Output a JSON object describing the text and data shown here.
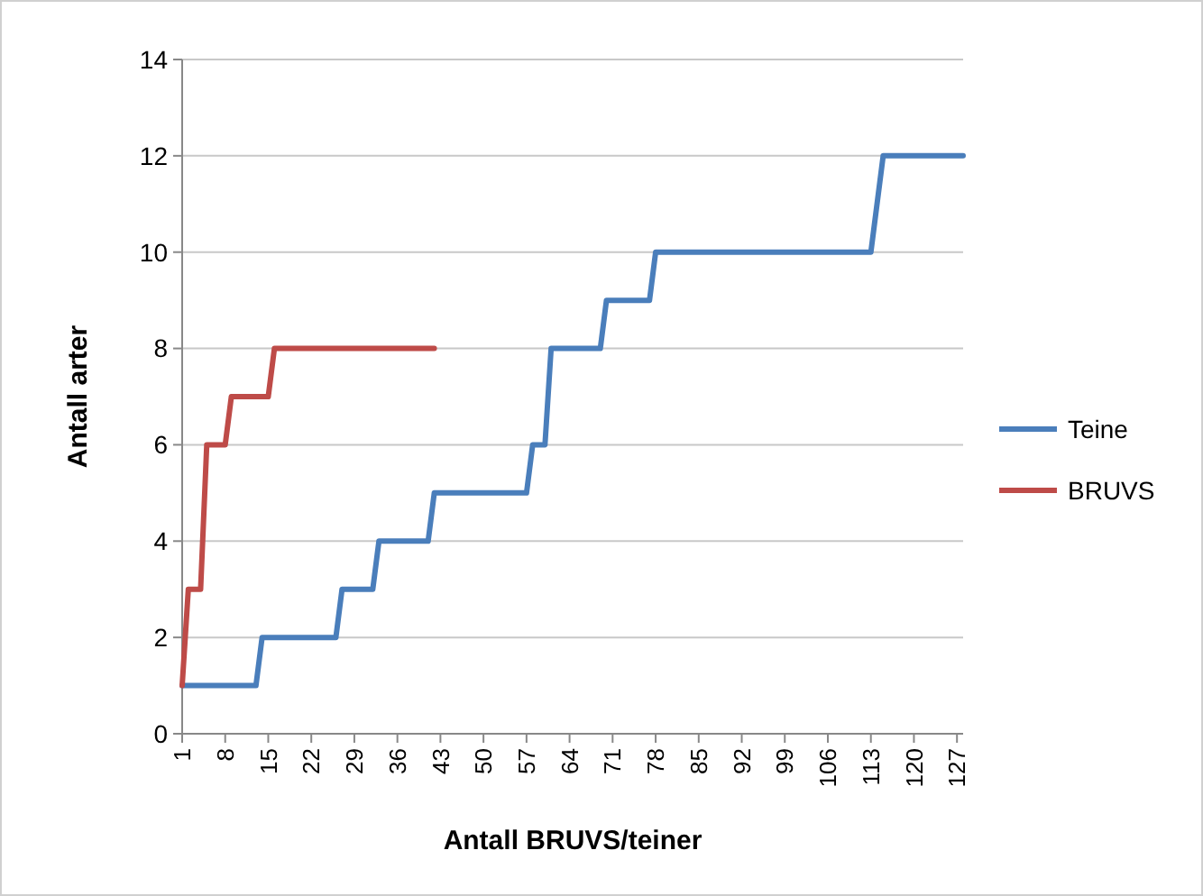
{
  "chart_data": {
    "type": "line",
    "xlabel": "Antall BRUVS/teiner",
    "ylabel": "Antall arter",
    "xlim": [
      1,
      128
    ],
    "xticks": [
      1,
      8,
      15,
      22,
      29,
      36,
      43,
      50,
      57,
      64,
      71,
      78,
      85,
      92,
      99,
      106,
      113,
      120,
      127
    ],
    "ylim": [
      0,
      14
    ],
    "yticks": [
      0,
      2,
      4,
      6,
      8,
      10,
      12,
      14
    ],
    "grid": "y",
    "legend": "right",
    "marker": "none",
    "line_style": "solid",
    "series": [
      {
        "name": "Teine",
        "color": "#4a7ebb",
        "x": [
          1,
          13,
          14,
          26,
          27,
          32,
          33,
          41,
          42,
          57,
          58,
          60,
          61,
          69,
          70,
          77,
          78,
          113,
          115,
          128
        ],
        "values": [
          1,
          1,
          2,
          2,
          3,
          3,
          4,
          4,
          5,
          5,
          6,
          6,
          8,
          8,
          9,
          9,
          10,
          10,
          12,
          12
        ]
      },
      {
        "name": "BRUVS",
        "color": "#be4b48",
        "x": [
          1,
          2,
          4,
          5,
          8,
          9,
          15,
          16,
          42
        ],
        "values": [
          1,
          3,
          3,
          6,
          6,
          7,
          7,
          8,
          8
        ]
      }
    ]
  }
}
